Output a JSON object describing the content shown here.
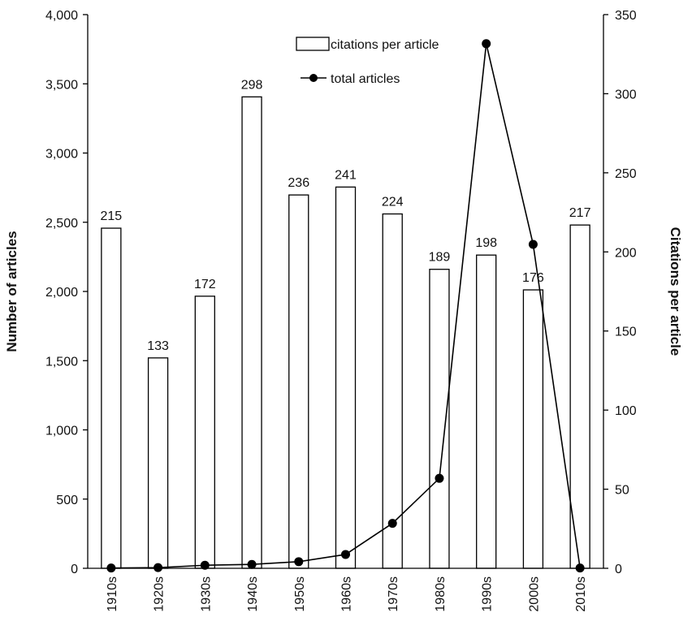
{
  "chart_data": {
    "type": "bar",
    "categories": [
      "1910s",
      "1920s",
      "1930s",
      "1940s",
      "1950s",
      "1960s",
      "1970s",
      "1980s",
      "1990s",
      "2000s",
      "2010s"
    ],
    "series": [
      {
        "name": "citations per article",
        "type": "bar",
        "axis": "right",
        "values": [
          215,
          133,
          172,
          298,
          236,
          241,
          224,
          189,
          198,
          176,
          217
        ]
      },
      {
        "name": "total articles",
        "type": "line",
        "axis": "left",
        "values": [
          2,
          5,
          22,
          28,
          48,
          100,
          325,
          650,
          3790,
          2340,
          2
        ]
      }
    ],
    "data_labels": [
      "215",
      "133",
      "172",
      "298",
      "236",
      "241",
      "224",
      "189",
      "198",
      "176",
      "217"
    ],
    "ylabel": "Number of articles",
    "ylabel_right": "Citations per article",
    "ylim": [
      0,
      4000
    ],
    "ylim_right": [
      0,
      350
    ],
    "yticks": [
      "0",
      "500",
      "1,000",
      "1,500",
      "2,000",
      "2,500",
      "3,000",
      "3,500",
      "4,000"
    ],
    "yticks_right": [
      "0",
      "50",
      "100",
      "150",
      "200",
      "250",
      "300",
      "350"
    ],
    "legend": [
      "citations per article",
      "total articles"
    ],
    "legend_position": "top-center",
    "grid": false,
    "colors": {
      "bar_fill": "#ffffff",
      "bar_stroke": "#000000",
      "line": "#000000",
      "marker": "#000000"
    }
  }
}
